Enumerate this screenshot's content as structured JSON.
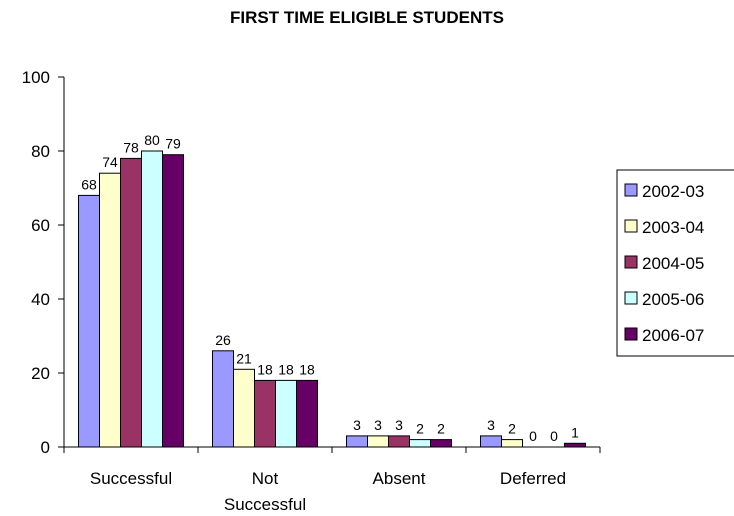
{
  "chart_data": {
    "type": "bar",
    "title": "FIRST TIME ELIGIBLE STUDENTS",
    "xlabel": "",
    "ylabel": "",
    "categories": [
      "Successful",
      "Not Successful",
      "Absent",
      "Deferred"
    ],
    "series": [
      {
        "name": "2002-03",
        "values": [
          68,
          26,
          3,
          3
        ],
        "color": "#9999ff"
      },
      {
        "name": "2003-04",
        "values": [
          74,
          21,
          3,
          2
        ],
        "color": "#ffffcc"
      },
      {
        "name": "2004-05",
        "values": [
          78,
          18,
          3,
          0
        ],
        "color": "#993366"
      },
      {
        "name": "2005-06",
        "values": [
          80,
          18,
          2,
          0
        ],
        "color": "#ccffff"
      },
      {
        "name": "2006-07",
        "values": [
          79,
          18,
          2,
          1
        ],
        "color": "#660066"
      }
    ],
    "ylim": [
      0,
      100
    ],
    "yticks": [
      0,
      20,
      40,
      60,
      80,
      100
    ],
    "grid": false,
    "legend": "right"
  }
}
